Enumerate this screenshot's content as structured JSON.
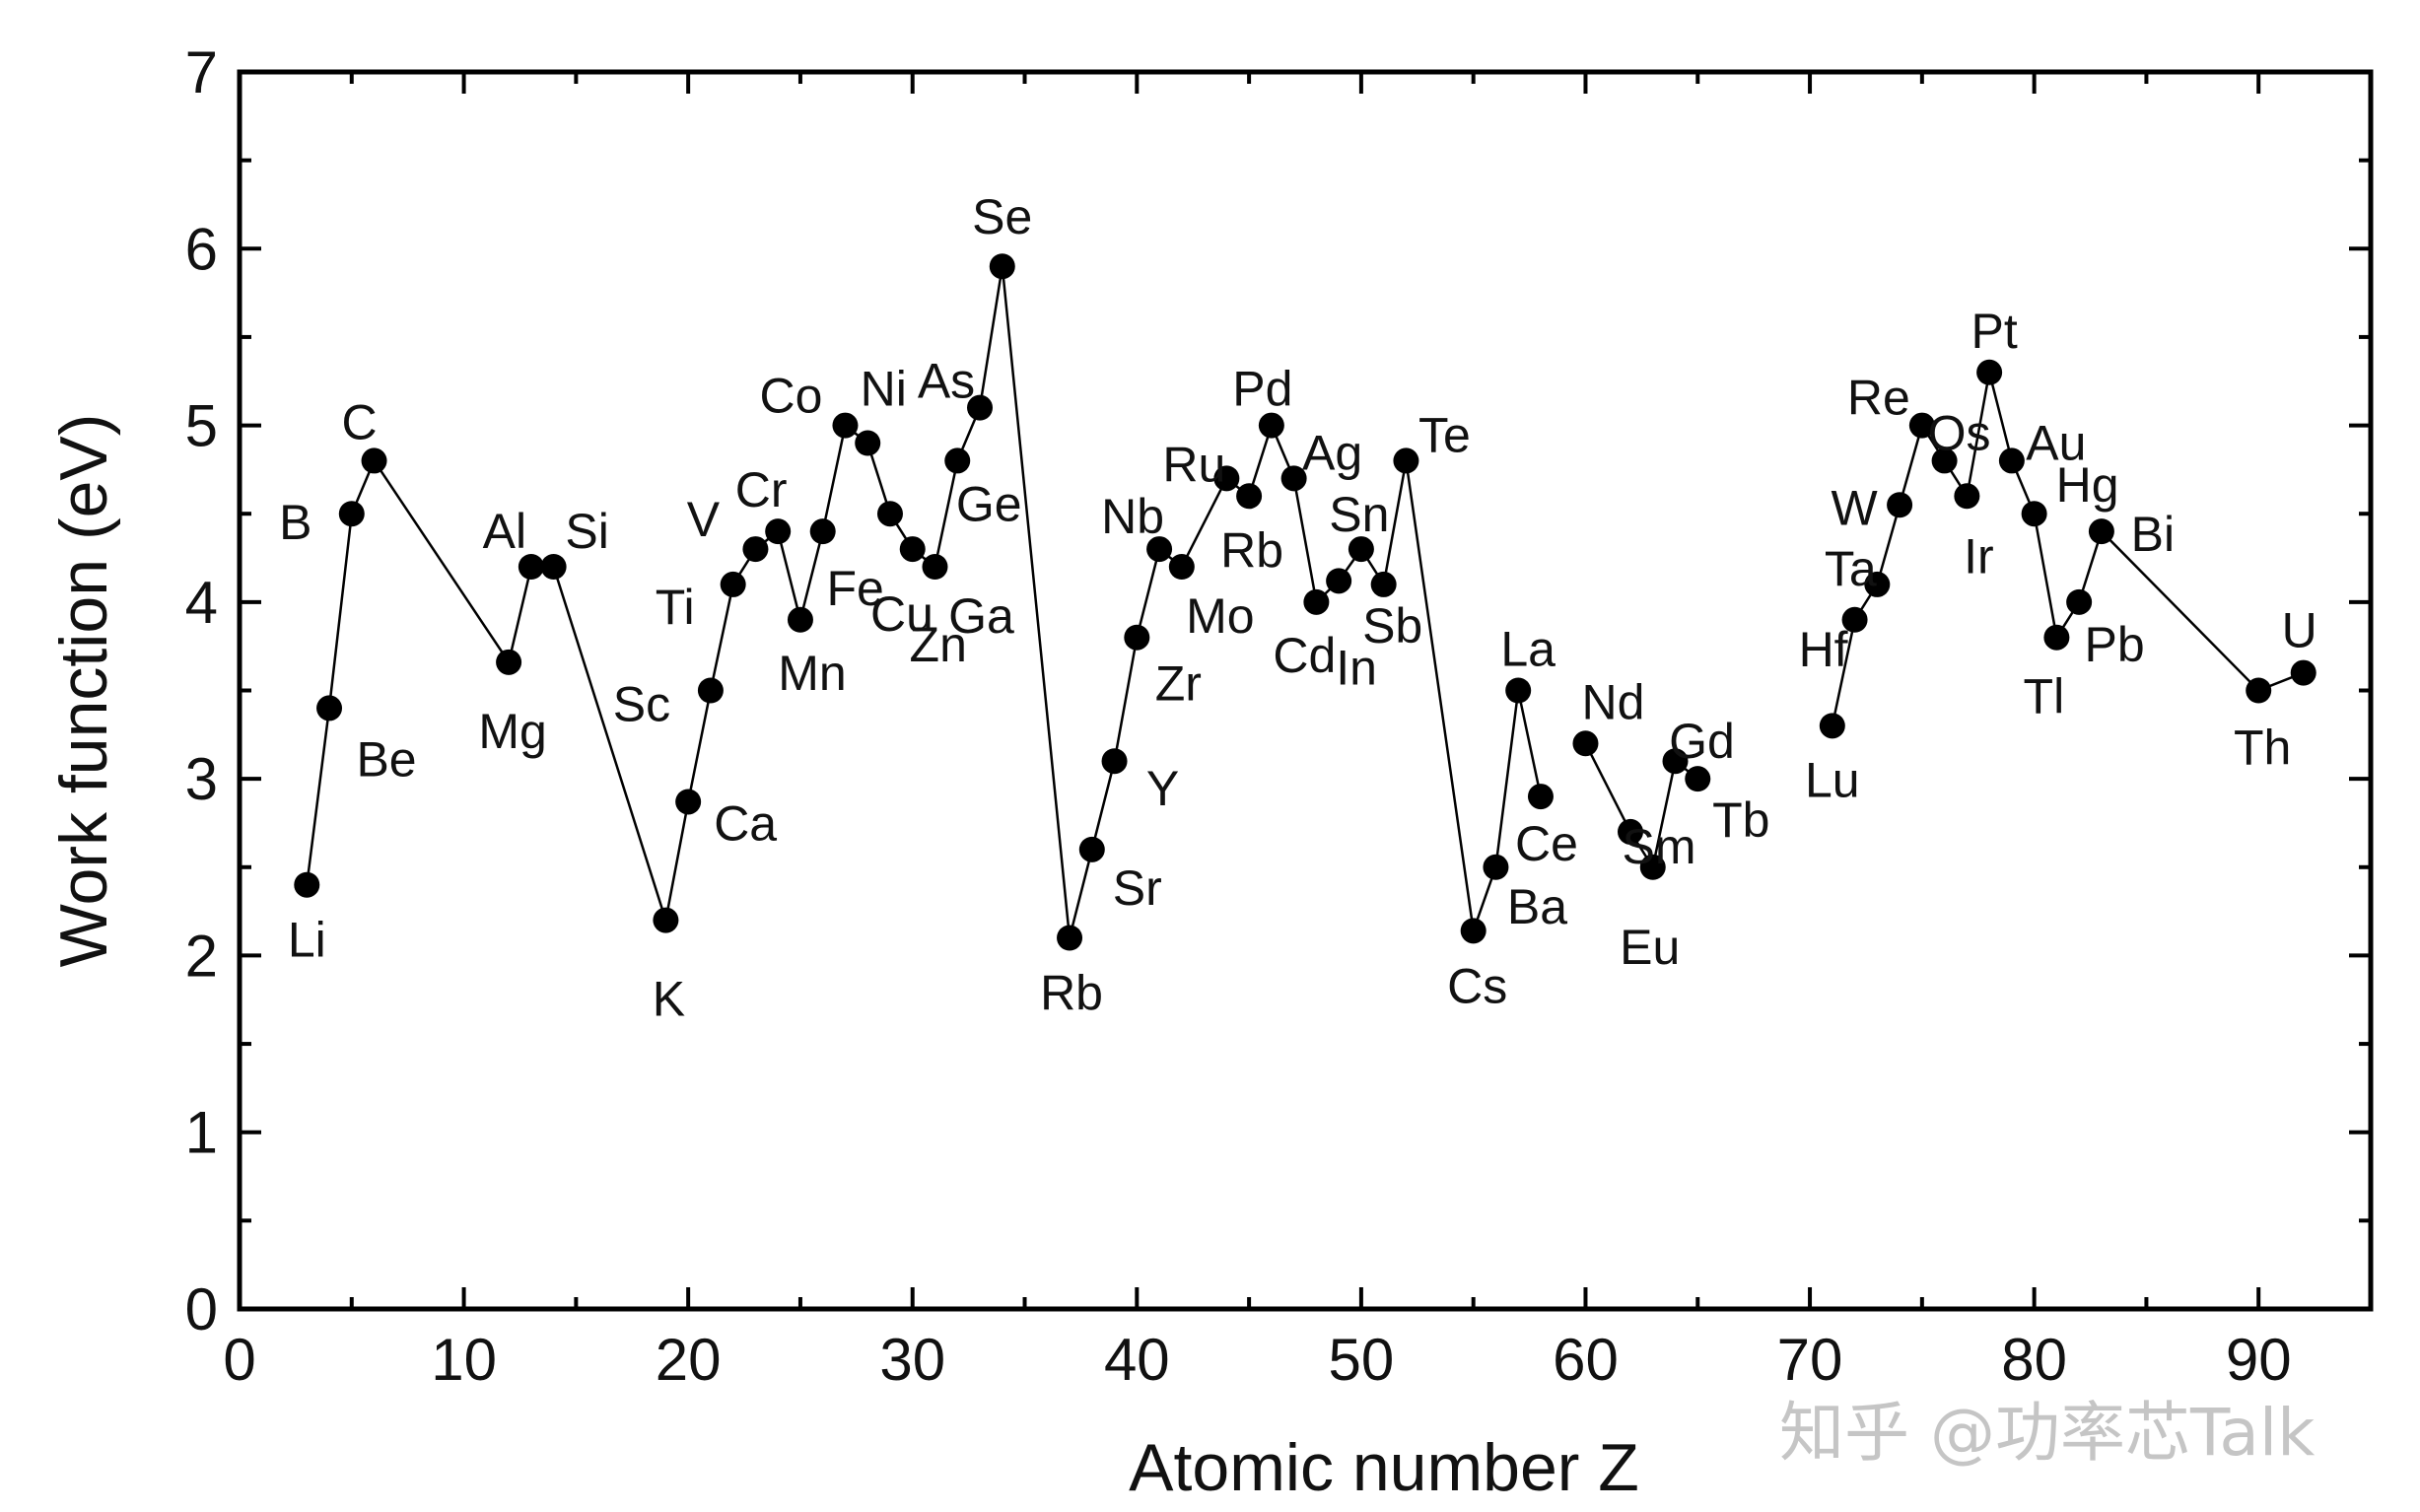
{
  "chart_data": {
    "type": "line",
    "title": "",
    "xlabel": "Atomic number Z",
    "ylabel": "Work function (eV)",
    "xlim": [
      0,
      95
    ],
    "ylim": [
      0,
      7
    ],
    "xticks": [
      "0",
      "10",
      "20",
      "30",
      "40",
      "50",
      "60",
      "70",
      "80",
      "90"
    ],
    "yticks": [
      "0",
      "1",
      "2",
      "3",
      "4",
      "5",
      "6",
      "7"
    ],
    "grid": false,
    "legend": "none",
    "marker_color": "#000000",
    "line_color": "#000000",
    "segments": [
      [
        3,
        4,
        5,
        6,
        12,
        13,
        14,
        19,
        20,
        21,
        22,
        23,
        24,
        25,
        26,
        27,
        28,
        29,
        30,
        31,
        32,
        33,
        34,
        37,
        38,
        39,
        40,
        41,
        42,
        44,
        45,
        46,
        47,
        48,
        49,
        50,
        51,
        52,
        55,
        56,
        57,
        58
      ],
      [
        60,
        62,
        63,
        64,
        65
      ],
      [
        71,
        72,
        73,
        74,
        75,
        76,
        77,
        78,
        79,
        80,
        81,
        82,
        83,
        90,
        92
      ]
    ],
    "points": [
      {
        "z": 3,
        "element": "Li",
        "wf": 2.4
      },
      {
        "z": 4,
        "element": "Be",
        "wf": 3.4
      },
      {
        "z": 5,
        "element": "B",
        "wf": 4.5
      },
      {
        "z": 6,
        "element": "C",
        "wf": 4.8
      },
      {
        "z": 12,
        "element": "Mg",
        "wf": 3.66
      },
      {
        "z": 13,
        "element": "Al",
        "wf": 4.2
      },
      {
        "z": 14,
        "element": "Si",
        "wf": 4.2
      },
      {
        "z": 19,
        "element": "K",
        "wf": 2.2
      },
      {
        "z": 20,
        "element": "Ca",
        "wf": 2.87
      },
      {
        "z": 21,
        "element": "Sc",
        "wf": 3.5
      },
      {
        "z": 22,
        "element": "Ti",
        "wf": 4.1
      },
      {
        "z": 23,
        "element": "V",
        "wf": 4.3
      },
      {
        "z": 24,
        "element": "Cr",
        "wf": 4.4
      },
      {
        "z": 25,
        "element": "Mn",
        "wf": 3.9
      },
      {
        "z": 26,
        "element": "Fe",
        "wf": 4.4
      },
      {
        "z": 27,
        "element": "Co",
        "wf": 5.0
      },
      {
        "z": 28,
        "element": "Ni",
        "wf": 4.9
      },
      {
        "z": 29,
        "element": "Cu",
        "wf": 4.5
      },
      {
        "z": 30,
        "element": "Zn",
        "wf": 4.3
      },
      {
        "z": 31,
        "element": "Ga",
        "wf": 4.2
      },
      {
        "z": 32,
        "element": "Ge",
        "wf": 4.8
      },
      {
        "z": 33,
        "element": "As",
        "wf": 5.1
      },
      {
        "z": 34,
        "element": "Se",
        "wf": 5.9
      },
      {
        "z": 37,
        "element": "Rb",
        "wf": 2.1
      },
      {
        "z": 38,
        "element": "Sr",
        "wf": 2.6
      },
      {
        "z": 39,
        "element": "Y",
        "wf": 3.1
      },
      {
        "z": 40,
        "element": "Zr",
        "wf": 3.8
      },
      {
        "z": 41,
        "element": "Nb",
        "wf": 4.3
      },
      {
        "z": 42,
        "element": "Mo",
        "wf": 4.2
      },
      {
        "z": 44,
        "element": "Ru",
        "wf": 4.7
      },
      {
        "z": 45,
        "element": "Rb",
        "wf": 4.6
      },
      {
        "z": 46,
        "element": "Pd",
        "wf": 5.0
      },
      {
        "z": 47,
        "element": "Ag",
        "wf": 4.7
      },
      {
        "z": 48,
        "element": "Cd",
        "wf": 4.0
      },
      {
        "z": 49,
        "element": "In",
        "wf": 4.12
      },
      {
        "z": 50,
        "element": "Sn",
        "wf": 4.3
      },
      {
        "z": 51,
        "element": "Sb",
        "wf": 4.1
      },
      {
        "z": 52,
        "element": "Te",
        "wf": 4.8
      },
      {
        "z": 55,
        "element": "Cs",
        "wf": 2.14
      },
      {
        "z": 56,
        "element": "Ba",
        "wf": 2.5
      },
      {
        "z": 57,
        "element": "La",
        "wf": 3.5
      },
      {
        "z": 58,
        "element": "Ce",
        "wf": 2.9
      },
      {
        "z": 60,
        "element": "Nd",
        "wf": 3.2
      },
      {
        "z": 62,
        "element": "Sm",
        "wf": 2.7
      },
      {
        "z": 63,
        "element": "Eu",
        "wf": 2.5
      },
      {
        "z": 64,
        "element": "Gd",
        "wf": 3.1
      },
      {
        "z": 65,
        "element": "Tb",
        "wf": 3.0
      },
      {
        "z": 71,
        "element": "Lu",
        "wf": 3.3
      },
      {
        "z": 72,
        "element": "Hf",
        "wf": 3.9
      },
      {
        "z": 73,
        "element": "Ta",
        "wf": 4.1
      },
      {
        "z": 74,
        "element": "W",
        "wf": 4.55
      },
      {
        "z": 75,
        "element": "Re",
        "wf": 5.0
      },
      {
        "z": 76,
        "element": "Os",
        "wf": 4.8
      },
      {
        "z": 77,
        "element": "Ir",
        "wf": 4.6
      },
      {
        "z": 78,
        "element": "Pt",
        "wf": 5.3
      },
      {
        "z": 79,
        "element": "Au",
        "wf": 4.8
      },
      {
        "z": 80,
        "element": "Hg",
        "wf": 4.5
      },
      {
        "z": 81,
        "element": "Tl",
        "wf": 3.8
      },
      {
        "z": 82,
        "element": "Pb",
        "wf": 4.0
      },
      {
        "z": 83,
        "element": "Bi",
        "wf": 4.4
      },
      {
        "z": 90,
        "element": "Th",
        "wf": 3.5
      },
      {
        "z": 92,
        "element": "U",
        "wf": 3.6
      }
    ]
  },
  "watermark": "知乎 @功率芯Talk"
}
